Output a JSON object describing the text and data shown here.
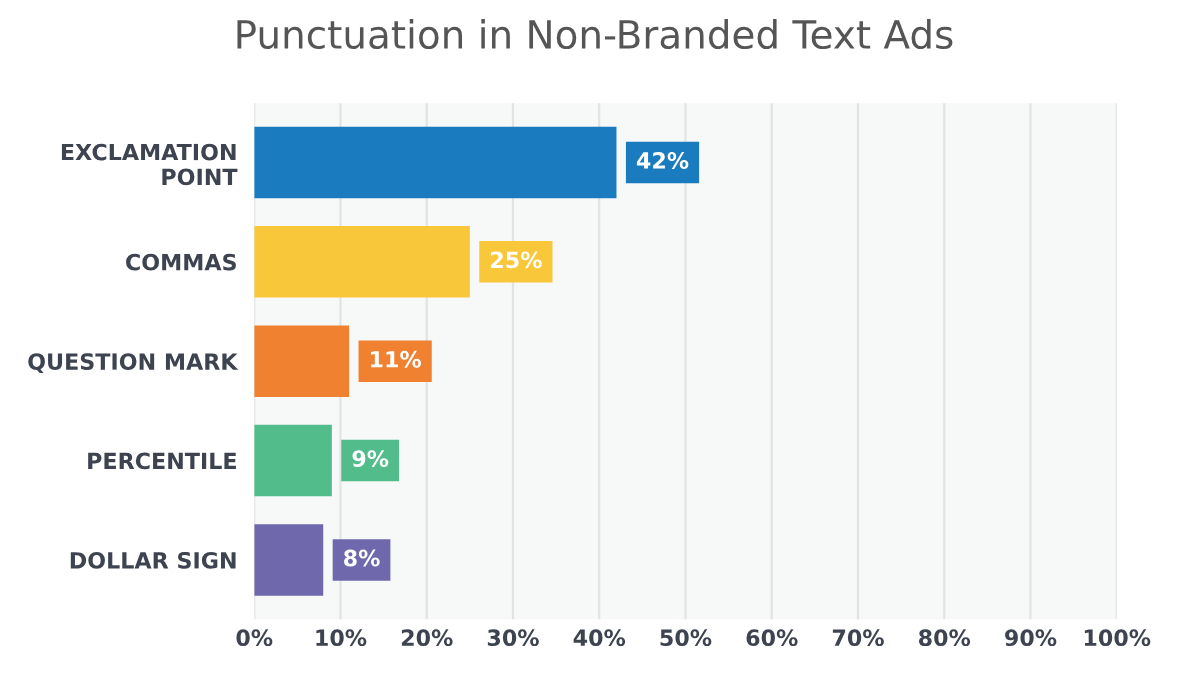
{
  "chart_data": {
    "type": "bar",
    "orientation": "horizontal",
    "title": "Punctuation in Non-Branded Text Ads",
    "categories": [
      "EXCLAMATION\nPOINT",
      "COMMAS",
      "QUESTION MARK",
      "PERCENTILE",
      "DOLLAR SIGN"
    ],
    "values": [
      42,
      25,
      11,
      9,
      8
    ],
    "colors": [
      "#1a7bbf",
      "#f9c73a",
      "#ef8130",
      "#52bd8a",
      "#6f68ad"
    ],
    "value_labels": [
      "42%",
      "25%",
      "11%",
      "9%",
      "8%"
    ],
    "xlim": [
      0,
      100
    ],
    "xticks": [
      {
        "value": 0,
        "label": "0%"
      },
      {
        "value": 10,
        "label": "10%"
      },
      {
        "value": 20,
        "label": "20%"
      },
      {
        "value": 30,
        "label": "30%"
      },
      {
        "value": 40,
        "label": "40%"
      },
      {
        "value": 50,
        "label": "50%"
      },
      {
        "value": 60,
        "label": "60%"
      },
      {
        "value": 70,
        "label": "70%"
      },
      {
        "value": 80,
        "label": "80%"
      },
      {
        "value": 90,
        "label": "90%"
      },
      {
        "value": 100,
        "label": "100%"
      }
    ],
    "grid": "x"
  }
}
